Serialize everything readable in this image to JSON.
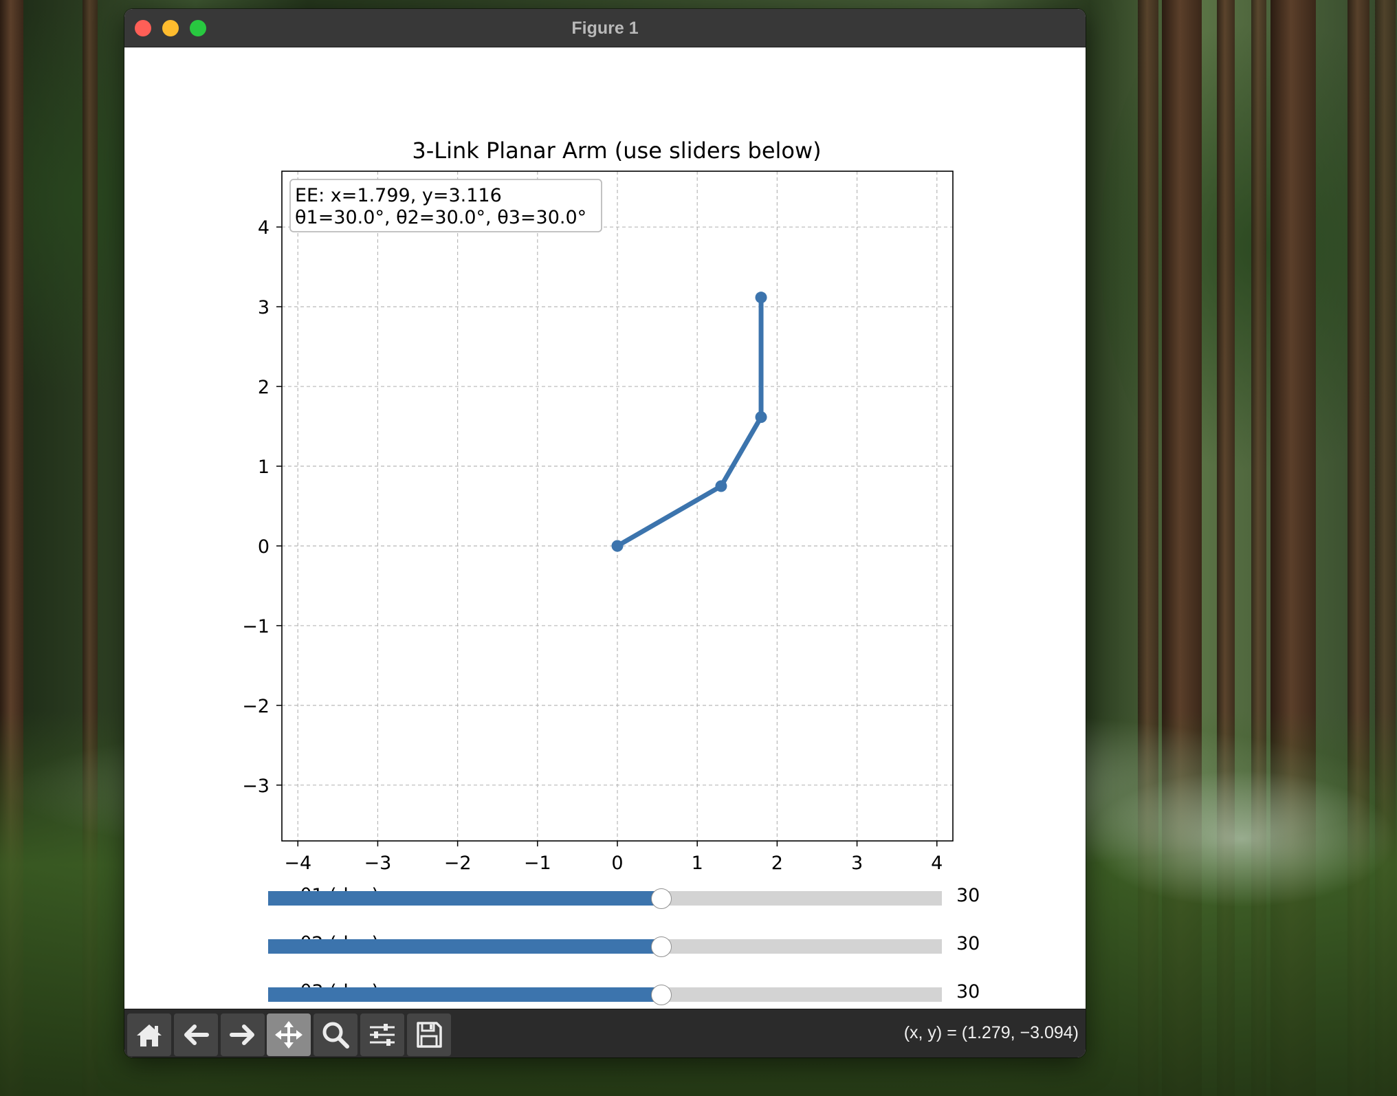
{
  "window": {
    "title": "Figure 1"
  },
  "chart_data": {
    "type": "line",
    "title": "3-Link Planar Arm (use sliders below)",
    "xlim": [
      -4.2,
      4.2
    ],
    "ylim": [
      -3.7,
      4.7
    ],
    "xticks": [
      -4,
      -3,
      -2,
      -1,
      0,
      1,
      2,
      3,
      4
    ],
    "xtick_labels": [
      "−4",
      "−3",
      "−2",
      "−1",
      "0",
      "1",
      "2",
      "3",
      "4"
    ],
    "yticks": [
      -3,
      -2,
      -1,
      0,
      1,
      2,
      3,
      4
    ],
    "ytick_labels": [
      "−3",
      "−2",
      "−1",
      "0",
      "1",
      "2",
      "3",
      "4"
    ],
    "grid": true,
    "series": [
      {
        "x": [
          0,
          1.299,
          1.799,
          1.799
        ],
        "y": [
          0,
          0.75,
          1.616,
          3.116
        ],
        "color": "#3c74ad"
      }
    ],
    "annotation": {
      "line1": "EE: x=1.799, y=3.116",
      "line2": "θ1=30.0°, θ2=30.0°, θ3=30.0°",
      "position": "top-left"
    }
  },
  "sliders": [
    {
      "label": "θ1 (deg)",
      "value": 30,
      "display": "30",
      "min": -180,
      "max": 180
    },
    {
      "label": "θ2 (deg)",
      "value": 30,
      "display": "30",
      "min": -180,
      "max": 180
    },
    {
      "label": "θ3 (deg)",
      "value": 30,
      "display": "30",
      "min": -180,
      "max": 180
    }
  ],
  "toolbar": {
    "buttons": [
      {
        "name": "home-button",
        "icon": "home-icon",
        "active": false
      },
      {
        "name": "back-button",
        "icon": "arrow-left-icon",
        "active": false
      },
      {
        "name": "forward-button",
        "icon": "arrow-right-icon",
        "active": false
      },
      {
        "name": "pan-button",
        "icon": "move-icon",
        "active": true
      },
      {
        "name": "zoom-button",
        "icon": "magnifier-icon",
        "active": false
      },
      {
        "name": "configure-button",
        "icon": "sliders-icon",
        "active": false
      },
      {
        "name": "save-button",
        "icon": "floppy-disk-icon",
        "active": false
      }
    ],
    "coords": "(x, y) = (1.279, −3.094)"
  },
  "colors": {
    "arm": "#3c74ad",
    "slider_fill": "#3c74ad",
    "slider_track": "#d3d3d3",
    "toolbar_bg": "#2b2b2b"
  }
}
